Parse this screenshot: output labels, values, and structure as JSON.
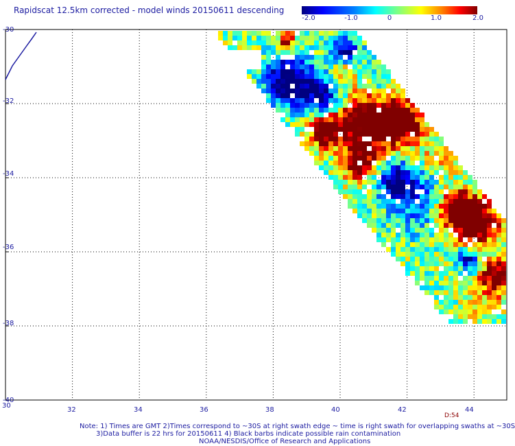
{
  "title": "Rapidscat 12.5km corrected - model winds 20150611 descending",
  "colorbar": {
    "ticks": [
      "-2.0",
      "-1.0",
      "0",
      "1.0",
      "2.0"
    ],
    "tick_values": [
      -2.0,
      -1.0,
      0.0,
      1.0,
      2.0
    ],
    "range": [
      -2.0,
      2.0
    ],
    "colors": [
      "#000080",
      "#0000ff",
      "#0080ff",
      "#00ffff",
      "#80ff80",
      "#ffff00",
      "#ff8000",
      "#ff0000",
      "#800000"
    ]
  },
  "axes": {
    "lon_range": [
      30,
      45
    ],
    "lat_range": [
      -30,
      -40
    ],
    "x_ticks": [
      "30",
      "32",
      "34",
      "36",
      "38",
      "40",
      "42",
      "44"
    ],
    "y_ticks": [
      "-30",
      "-32",
      "-34",
      "-36",
      "-38",
      "-40"
    ],
    "grid": true
  },
  "footer": {
    "line1": "Note: 1) Times are GMT 2)Times correspond to ~30S at right swath edge ~ time is right swath for overlapping swaths at ~30S",
    "line2": "3)Data buffer is 22 hrs for 20150611 4) Black barbs indicate possible rain contamination",
    "line3": "NOAA/NESDIS/Office of Research and Applications",
    "time_label": "D:54"
  }
}
